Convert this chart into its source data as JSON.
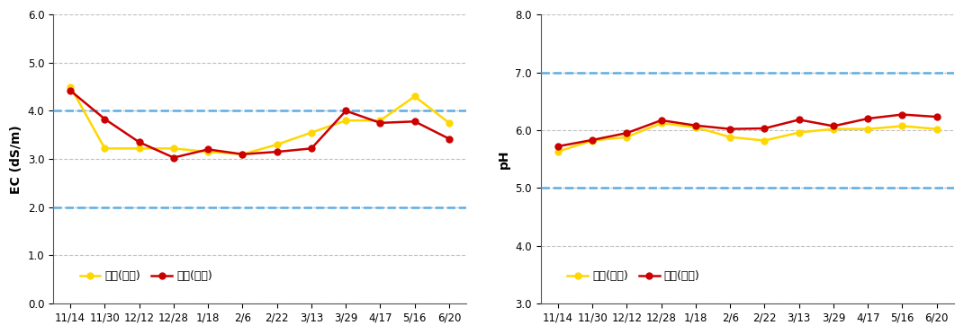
{
  "x_labels": [
    "11/14",
    "11/30",
    "12/12",
    "12/28",
    "1/18",
    "2/6",
    "2/22",
    "3/13",
    "3/29",
    "4/17",
    "5/16",
    "6/20"
  ],
  "ec_yellow": [
    4.5,
    3.22,
    3.22,
    3.22,
    3.15,
    3.1,
    3.3,
    3.55,
    3.8,
    3.8,
    4.3,
    3.75
  ],
  "ec_red": [
    4.42,
    3.83,
    3.35,
    3.03,
    3.2,
    3.1,
    3.15,
    3.22,
    4.0,
    3.75,
    3.78,
    3.42
  ],
  "ph_yellow": [
    5.63,
    5.82,
    5.88,
    6.12,
    6.05,
    5.88,
    5.82,
    5.96,
    6.02,
    6.02,
    6.07,
    6.02
  ],
  "ph_red": [
    5.72,
    5.83,
    5.95,
    6.17,
    6.08,
    6.02,
    6.03,
    6.18,
    6.07,
    6.2,
    6.27,
    6.23
  ],
  "ec_hlines": [
    2.0,
    4.0
  ],
  "ph_hlines": [
    5.0,
    7.0
  ],
  "ec_ylim": [
    0.0,
    6.0
  ],
  "ec_yticks": [
    0.0,
    1.0,
    2.0,
    3.0,
    4.0,
    5.0,
    6.0
  ],
  "ph_ylim": [
    3.0,
    8.0
  ],
  "ph_yticks": [
    3.0,
    4.0,
    5.0,
    6.0,
    7.0,
    8.0
  ],
  "ec_ylabel": "EC (dS/m)",
  "ph_ylabel": "pH",
  "color_yellow": "#FFD700",
  "color_red": "#CC0000",
  "color_hline": "#5DADE2",
  "legend_label_yellow": "배액(노랑)",
  "legend_label_red": "배액(빨강)",
  "bg_color": "#ffffff",
  "grid_color": "#c0c0c0",
  "marker": "o",
  "markersize": 5,
  "linewidth": 1.8,
  "tick_fontsize": 8.5,
  "ylabel_fontsize": 10,
  "legend_fontsize": 9
}
